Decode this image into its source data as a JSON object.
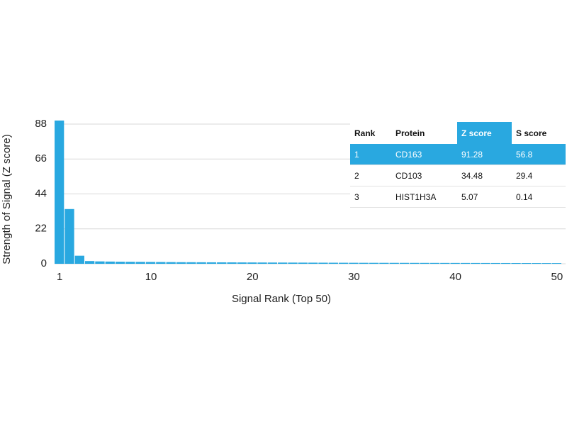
{
  "chart_data": {
    "type": "bar",
    "xlabel": "Signal Rank (Top 50)",
    "ylabel": "Strength of Signal (Z score)",
    "x": [
      1,
      2,
      3,
      4,
      5,
      6,
      7,
      8,
      9,
      10,
      11,
      12,
      13,
      14,
      15,
      16,
      17,
      18,
      19,
      20,
      21,
      22,
      23,
      24,
      25,
      26,
      27,
      28,
      29,
      30,
      31,
      32,
      33,
      34,
      35,
      36,
      37,
      38,
      39,
      40,
      41,
      42,
      43,
      44,
      45,
      46,
      47,
      48,
      49,
      50
    ],
    "values": [
      91.28,
      34.48,
      5.07,
      1.7,
      1.5,
      1.4,
      1.3,
      1.25,
      1.2,
      1.15,
      1.1,
      1.05,
      1.0,
      0.98,
      0.95,
      0.92,
      0.9,
      0.88,
      0.85,
      0.83,
      0.8,
      0.78,
      0.76,
      0.74,
      0.72,
      0.7,
      0.68,
      0.66,
      0.64,
      0.62,
      0.6,
      0.59,
      0.58,
      0.57,
      0.56,
      0.55,
      0.54,
      0.53,
      0.52,
      0.51,
      0.5,
      0.49,
      0.48,
      0.47,
      0.46,
      0.45,
      0.44,
      0.43,
      0.42,
      0.41
    ],
    "color": "#29a8e0",
    "xlim": [
      0.5,
      50.5
    ],
    "xticks": [
      1,
      10,
      20,
      30,
      40,
      50
    ],
    "ylim": [
      0,
      90
    ],
    "yticks": [
      0,
      22,
      44,
      66,
      88
    ],
    "grid": true
  },
  "table": {
    "header": [
      "Rank",
      "Protein",
      "Z score",
      "S score"
    ],
    "rows": [
      [
        1,
        "CD163",
        91.28,
        56.8
      ],
      [
        2,
        "CD103",
        34.48,
        29.4
      ],
      [
        3,
        "HIST1H3A",
        5.07,
        0.14
      ]
    ]
  }
}
